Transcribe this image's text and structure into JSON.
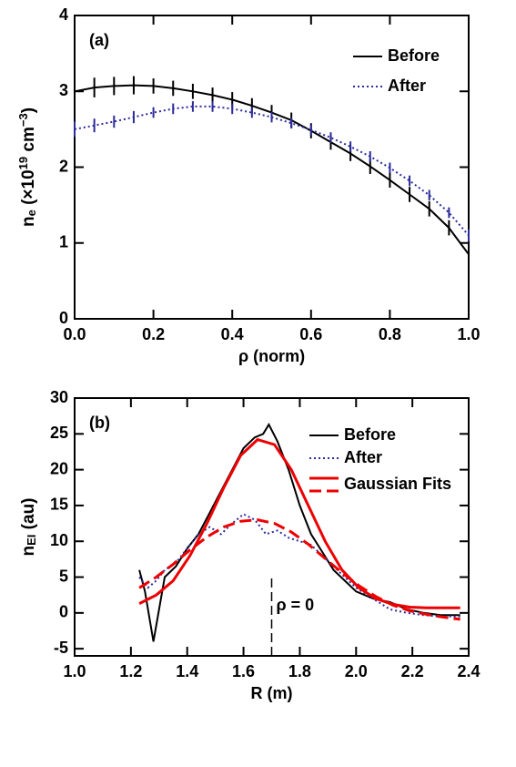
{
  "chart_data": [
    {
      "type": "line",
      "label": "(a)",
      "xlabel": "ρ (norm)",
      "ylabel": {
        "parts": [
          "n",
          "e",
          " (×10",
          "19",
          " cm",
          "−3",
          ")"
        ],
        "shift": [
          "base",
          "sub",
          "base",
          "super",
          "base",
          "super",
          "base"
        ]
      },
      "xlim": [
        0,
        1
      ],
      "xticks": [
        {
          "value": 0,
          "label": "0.0"
        },
        0.2,
        0.4,
        0.6,
        0.8,
        {
          "value": 1,
          "label": "1.0"
        }
      ],
      "ylim": [
        0,
        4
      ],
      "yticks": [
        0,
        1,
        2,
        3,
        4
      ],
      "legend": "upper right",
      "series": [
        {
          "name": "Before",
          "color": "#000000",
          "dash": "solid",
          "x": [
            0,
            0.05,
            0.1,
            0.15,
            0.2,
            0.25,
            0.3,
            0.35,
            0.4,
            0.45,
            0.5,
            0.55,
            0.6,
            0.65,
            0.7,
            0.75,
            0.8,
            0.85,
            0.9,
            0.95,
            1
          ],
          "values": [
            3.0,
            3.05,
            3.07,
            3.08,
            3.07,
            3.04,
            3.0,
            2.95,
            2.89,
            2.81,
            2.72,
            2.62,
            2.48,
            2.33,
            2.18,
            2.01,
            1.83,
            1.64,
            1.45,
            1.2,
            0.85
          ],
          "errors": [
            0.15,
            0.13,
            0.12,
            0.12,
            0.1,
            0.1,
            0.1,
            0.1,
            0.1,
            0.1,
            0.1,
            0.1,
            0.1,
            0.1,
            0.1,
            0.1,
            0.1,
            0.1,
            0.1,
            0.1,
            0.1
          ]
        },
        {
          "name": "After",
          "color": "#2b2b9b",
          "dash": "dotted",
          "x": [
            0,
            0.05,
            0.1,
            0.15,
            0.2,
            0.25,
            0.3,
            0.35,
            0.4,
            0.45,
            0.5,
            0.55,
            0.6,
            0.65,
            0.7,
            0.75,
            0.8,
            0.85,
            0.9,
            0.95,
            1
          ],
          "values": [
            2.5,
            2.55,
            2.6,
            2.66,
            2.72,
            2.77,
            2.8,
            2.8,
            2.77,
            2.72,
            2.66,
            2.58,
            2.49,
            2.39,
            2.27,
            2.14,
            1.99,
            1.82,
            1.63,
            1.4,
            1.1
          ],
          "errors": [
            0.1,
            0.09,
            0.08,
            0.08,
            0.07,
            0.07,
            0.07,
            0.07,
            0.07,
            0.07,
            0.07,
            0.07,
            0.07,
            0.07,
            0.07,
            0.07,
            0.07,
            0.07,
            0.07,
            0.07,
            0.08
          ]
        }
      ]
    },
    {
      "type": "line",
      "label": "(b)",
      "xlabel": "R (m)",
      "ylabel": {
        "parts": [
          "n",
          "EI",
          " (au)"
        ],
        "shift": [
          "base",
          "sub",
          "base"
        ]
      },
      "xlim": [
        1.0,
        2.4
      ],
      "xticks": [
        {
          "value": 1,
          "label": "1.0"
        },
        1.2,
        1.4,
        1.6,
        1.8,
        {
          "value": 2,
          "label": "2.0"
        },
        2.2,
        2.4
      ],
      "ylim": [
        -6,
        30
      ],
      "yticks": [
        -5,
        0,
        5,
        10,
        15,
        20,
        25,
        30
      ],
      "legend": "upper right",
      "annotation": {
        "text": "ρ = 0",
        "x": 1.7
      },
      "series": [
        {
          "name": "Before",
          "color": "#000000",
          "dash": "solid",
          "x": [
            1.23,
            1.25,
            1.28,
            1.32,
            1.36,
            1.4,
            1.44,
            1.48,
            1.52,
            1.56,
            1.6,
            1.64,
            1.67,
            1.69,
            1.72,
            1.76,
            1.8,
            1.84,
            1.88,
            1.92,
            1.96,
            2.0,
            2.06,
            2.12,
            2.18,
            2.24,
            2.3,
            2.37
          ],
          "values": [
            6,
            3,
            -4,
            5,
            6.5,
            9,
            11,
            14,
            17,
            20,
            23,
            24.5,
            25,
            26.3,
            24,
            20,
            15,
            11,
            8.5,
            6,
            4.5,
            3,
            2,
            1.5,
            0.5,
            0,
            -0.3,
            -0.3
          ]
        },
        {
          "name": "After",
          "color": "#2b2b9b",
          "dash": "dotted",
          "x": [
            1.23,
            1.26,
            1.29,
            1.32,
            1.36,
            1.4,
            1.44,
            1.48,
            1.52,
            1.56,
            1.6,
            1.64,
            1.68,
            1.72,
            1.76,
            1.8,
            1.84,
            1.88,
            1.92,
            1.96,
            2.0,
            2.06,
            2.12,
            2.18,
            2.24,
            2.3,
            2.37
          ],
          "values": [
            5,
            3.5,
            4.5,
            6,
            7,
            9,
            11,
            12,
            11,
            12.5,
            13.8,
            13,
            11,
            11.5,
            10.5,
            10,
            9.5,
            8,
            6.5,
            5,
            3.5,
            2,
            0.5,
            0,
            -0.3,
            -0.5,
            -0.5
          ]
        },
        {
          "name": "Gaussian Fits",
          "color": "#ee0000",
          "dash": "solid",
          "x": [
            1.23,
            1.29,
            1.35,
            1.41,
            1.47,
            1.53,
            1.59,
            1.65,
            1.71,
            1.77,
            1.83,
            1.89,
            1.95,
            2.01,
            2.07,
            2.13,
            2.19,
            2.25,
            2.31,
            2.37
          ],
          "values": [
            1.3,
            2.5,
            4.5,
            8,
            12.5,
            17.5,
            22,
            24.2,
            23.5,
            20,
            15,
            10,
            6,
            3.5,
            2,
            1.2,
            0.8,
            0.7,
            0.7,
            0.7
          ]
        },
        {
          "color": "#ee0000",
          "dash": "dashed",
          "x": [
            1.23,
            1.29,
            1.35,
            1.41,
            1.47,
            1.53,
            1.59,
            1.65,
            1.71,
            1.77,
            1.83,
            1.89,
            1.95,
            2.01,
            2.07,
            2.13,
            2.19,
            2.25,
            2.31,
            2.37
          ],
          "values": [
            3.5,
            5,
            6.8,
            8.8,
            10.6,
            12,
            12.8,
            13,
            12.5,
            11.3,
            9.6,
            7.6,
            5.6,
            3.8,
            2.3,
            1.1,
            0.3,
            -0.2,
            -0.6,
            -0.9
          ]
        }
      ]
    }
  ]
}
